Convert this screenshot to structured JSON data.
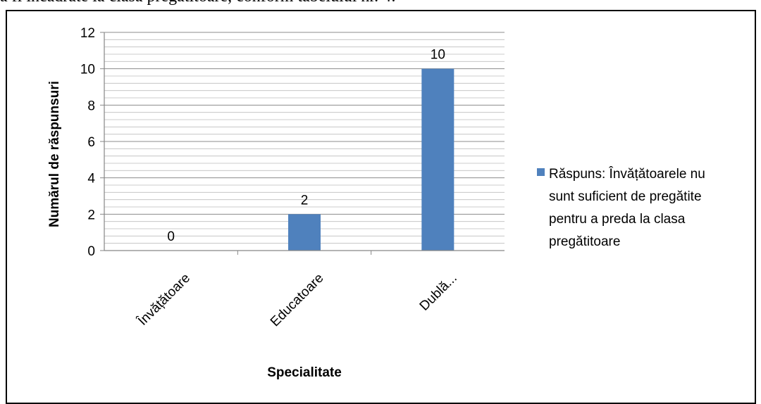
{
  "header_text": "a fi încadrate la clasa pregătitoare, conform tabelului nr. 4:",
  "chart_data": {
    "type": "bar",
    "categories": [
      "Învățătoare",
      "Educatoare",
      "Dublă..."
    ],
    "series": [
      {
        "name": "Răspuns: Învățătoarele nu sunt suficient de pregătite pentru a preda la clasa pregătitoare",
        "values": [
          0,
          2,
          10
        ],
        "color": "#4f81bd"
      }
    ],
    "data_labels": [
      "0",
      "2",
      "10"
    ],
    "xlabel": "Specialitate",
    "ylabel": "Numărul de răspunsuri",
    "ylim": [
      0,
      12
    ],
    "yticks": [
      0,
      2,
      4,
      6,
      8,
      10,
      12
    ],
    "grid": true,
    "legend_position": "right",
    "legend_lines": [
      "Răspuns: Învățătoarele nu",
      "sunt suficient de pregătite",
      "pentru a preda la clasa",
      "pregătitoare"
    ]
  }
}
